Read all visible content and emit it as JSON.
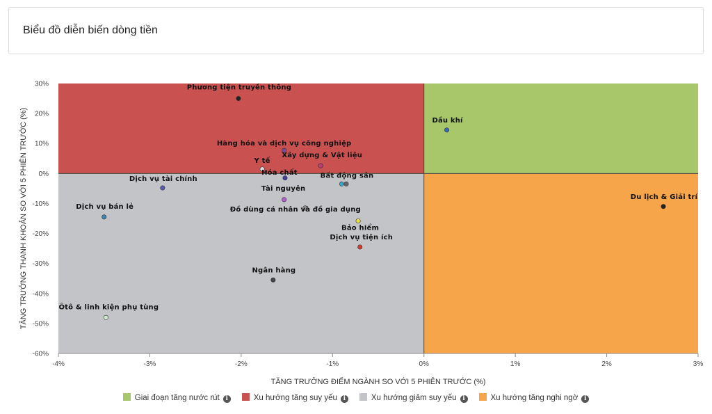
{
  "header": {
    "title": "Biểu đồ diễn biến dòng tiền"
  },
  "chart_data": {
    "type": "scatter",
    "xlabel": "TĂNG TRƯỞNG ĐIỂM NGÀNH SO VỚI 5 PHIÊN TRƯỚC (%)",
    "ylabel": "TĂNG TRƯỞNG THANH KHOẢN SO VỚI 5 PHIÊN TRƯỚC (%)",
    "xlim": [
      -4,
      3
    ],
    "ylim": [
      -60,
      30
    ],
    "xticks": [
      -4,
      -3,
      -2,
      -1,
      0,
      1,
      2,
      3
    ],
    "xtick_labels": [
      "-4%",
      "-3%",
      "-2%",
      "-1%",
      "0%",
      "1%",
      "2%",
      "3%"
    ],
    "yticks": [
      30,
      20,
      10,
      0,
      -10,
      -20,
      -30,
      -40,
      -50,
      -60
    ],
    "ytick_labels": [
      "30%",
      "20%",
      "10%",
      "0%",
      "-10%",
      "-20%",
      "-30%",
      "-40%",
      "-50%",
      "-60%"
    ],
    "grid": false,
    "quadrants": [
      {
        "name": "Giai đoạn tăng nước rút",
        "color": "#a7c76a",
        "x": [
          0,
          3
        ],
        "y": [
          0,
          30
        ]
      },
      {
        "name": "Xu hướng tăng suy yếu",
        "color": "#c9514f",
        "x": [
          -4,
          0
        ],
        "y": [
          0,
          30
        ]
      },
      {
        "name": "Xu hướng giảm suy yếu",
        "color": "#c3c4c8",
        "x": [
          -4,
          0
        ],
        "y": [
          -60,
          0
        ]
      },
      {
        "name": "Xu hướng tăng nghi ngờ",
        "color": "#f7a54b",
        "x": [
          0,
          3
        ],
        "y": [
          -60,
          0
        ]
      }
    ],
    "points": [
      {
        "name": "Phương tiện truyền thông",
        "x": -2.03,
        "y": 25,
        "color": "#222222"
      },
      {
        "name": "Dầu khí",
        "x": 0.25,
        "y": 14.5,
        "color": "#3a68b0"
      },
      {
        "name": "Hàng hóa và dịch vụ công nghiệp",
        "x": -1.53,
        "y": 7.7,
        "color": "#7a4b9a"
      },
      {
        "name": "Xây dựng & Vật liệu",
        "x": -1.13,
        "y": 2.6,
        "color": "#c03a7a"
      },
      {
        "name": "Y tế",
        "x": -1.77,
        "y": 1.5,
        "color": "#dddddd"
      },
      {
        "name": "Hóa chất",
        "x": -1.52,
        "y": -1.5,
        "color": "#44449a"
      },
      {
        "name": "Bất động sản",
        "x": -0.85,
        "y": -3.5,
        "color": "#666666"
      },
      {
        "name": "",
        "x": -0.9,
        "y": -3.5,
        "color": "#35a8c8"
      },
      {
        "name": "Dịch vụ tài chính",
        "x": -2.86,
        "y": -4.8,
        "color": "#5a5ab8"
      },
      {
        "name": "Du lịch & Giải trí",
        "x": 2.62,
        "y": -11,
        "color": "#222222"
      },
      {
        "name": "Tài nguyên",
        "x": -1.53,
        "y": -8.7,
        "color": "#b060c8"
      },
      {
        "name": "Dịch vụ bán lẻ",
        "x": -3.5,
        "y": -14.5,
        "color": "#3a88b0"
      },
      {
        "name": "Đồ dùng cá nhân và đồ gia dụng",
        "x": -1.3,
        "y": -11.5,
        "color": "#9a9a9a"
      },
      {
        "name": "Bảo hiểm",
        "x": -0.72,
        "y": -15.8,
        "color": "#e8e040"
      },
      {
        "name": "Dịch vụ tiện ích",
        "x": -0.7,
        "y": -24.5,
        "color": "#d83a2a"
      },
      {
        "name": "Ngân hàng",
        "x": -1.65,
        "y": -35.5,
        "color": "#444444"
      },
      {
        "name": "Ôtô & linh kiện phụ tùng",
        "x": -3.48,
        "y": -48,
        "color": "#d0ead0"
      }
    ]
  }
}
